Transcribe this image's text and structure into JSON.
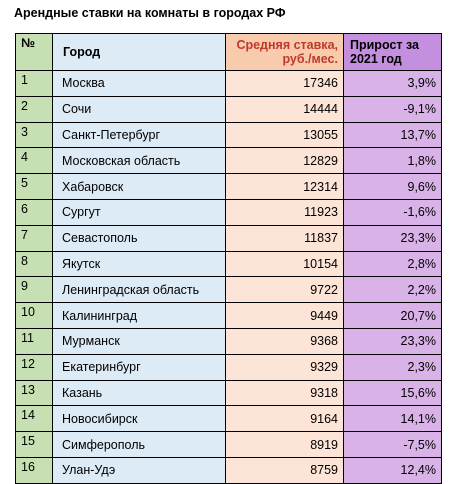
{
  "title": "Арендные ставки на комнаты в городах РФ",
  "headers": {
    "num": "№",
    "city": "Город",
    "rate": "Средняя ставка, руб./мес.",
    "growth": "Прирост за 2021 год"
  },
  "rows": [
    {
      "num": "1",
      "city": "Москва",
      "rate": "17346",
      "growth": "3,9%"
    },
    {
      "num": "2",
      "city": "Сочи",
      "rate": "14444",
      "growth": "-9,1%"
    },
    {
      "num": "3",
      "city": "Санкт-Петербург",
      "rate": "13055",
      "growth": "13,7%"
    },
    {
      "num": "4",
      "city": "Московская область",
      "rate": "12829",
      "growth": "1,8%"
    },
    {
      "num": "5",
      "city": "Хабаровск",
      "rate": "12314",
      "growth": "9,6%"
    },
    {
      "num": "6",
      "city": "Сургут",
      "rate": "11923",
      "growth": "-1,6%"
    },
    {
      "num": "7",
      "city": "Севастополь",
      "rate": "11837",
      "growth": "23,3%"
    },
    {
      "num": "8",
      "city": "Якутск",
      "rate": "10154",
      "growth": "2,8%"
    },
    {
      "num": "9",
      "city": "Ленинградская область",
      "rate": "9722",
      "growth": "2,2%"
    },
    {
      "num": "10",
      "city": "Калининград",
      "rate": "9449",
      "growth": "20,7%"
    },
    {
      "num": "11",
      "city": "Мурманск",
      "rate": "9368",
      "growth": "23,3%"
    },
    {
      "num": "12",
      "city": "Екатеринбург",
      "rate": "9329",
      "growth": "2,3%"
    },
    {
      "num": "13",
      "city": "Казань",
      "rate": "9318",
      "growth": "15,6%"
    },
    {
      "num": "14",
      "city": "Новосибирск",
      "rate": "9164",
      "growth": "14,1%"
    },
    {
      "num": "15",
      "city": "Симферополь",
      "rate": "8919",
      "growth": "-7,5%"
    },
    {
      "num": "16",
      "city": "Улан-Удэ",
      "rate": "8759",
      "growth": "12,4%"
    }
  ]
}
